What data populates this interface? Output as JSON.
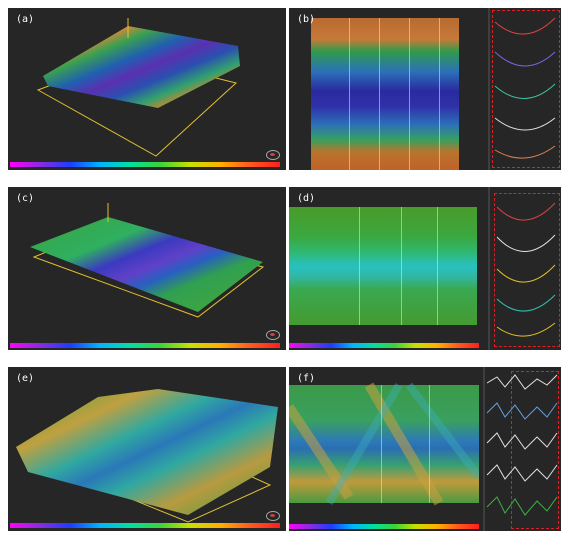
{
  "panels": {
    "a": {
      "label": "(a)"
    },
    "b": {
      "label": "(b)"
    },
    "c": {
      "label": "(c)"
    },
    "d": {
      "label": "(d)"
    },
    "e": {
      "label": "(e)"
    },
    "f": {
      "label": "(f)"
    }
  },
  "colors": {
    "background": "#262626",
    "frame": "#e0c030",
    "profile_box": "#e02020",
    "colorbar": [
      "#ff00ff",
      "#8a2be2",
      "#1e3cff",
      "#00b4ff",
      "#00e0a0",
      "#39d439",
      "#c8e000",
      "#ffb000",
      "#ff5a1e",
      "#ff1e1e"
    ]
  },
  "icons": {
    "view_orientation": "axis-orientation-icon",
    "colorbar_end": "colorbar-end-marker-icon"
  }
}
